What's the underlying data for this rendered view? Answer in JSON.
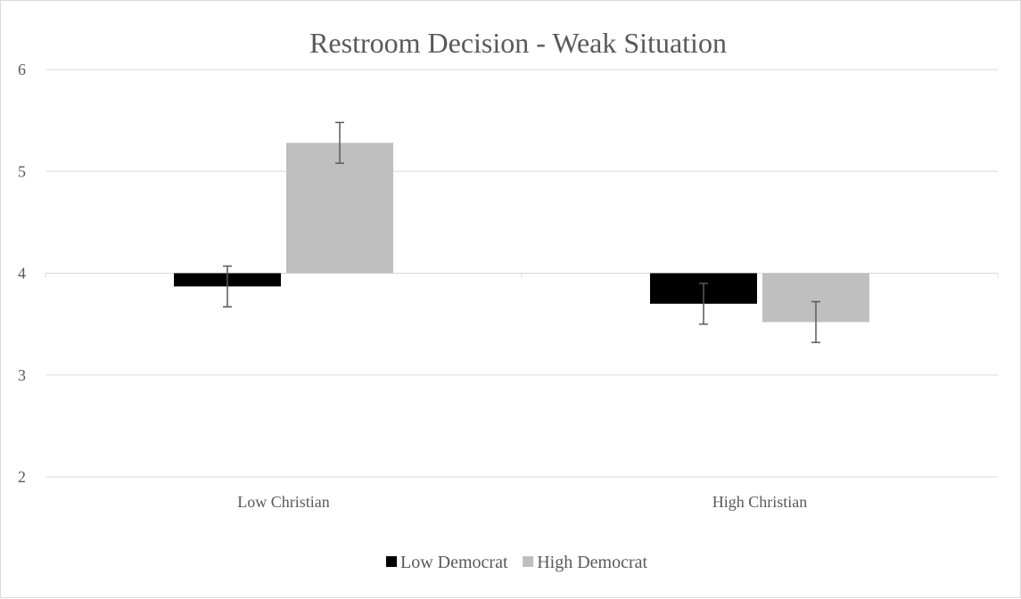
{
  "chart_data": {
    "type": "bar",
    "title": "Restroom Decision - Weak Situation",
    "xlabel": "",
    "ylabel": "",
    "categories": [
      "Low Christian",
      "High Christian"
    ],
    "baseline": 4,
    "ylim": [
      2,
      6
    ],
    "yticks": [
      "2",
      "3",
      "4",
      "5",
      "6"
    ],
    "grid": true,
    "legend_position": "bottom",
    "series": [
      {
        "name": "Low Democrat",
        "color": "#000000",
        "values": [
          3.87,
          3.7
        ],
        "error": [
          0.2,
          0.2
        ]
      },
      {
        "name": "High Democrat",
        "color": "#bfbfbf",
        "values": [
          5.28,
          3.52
        ],
        "error": [
          0.2,
          0.2
        ]
      }
    ],
    "colors": {
      "grid": "#d9d9d9",
      "text": "#595959",
      "errorbar": "#595959"
    }
  }
}
